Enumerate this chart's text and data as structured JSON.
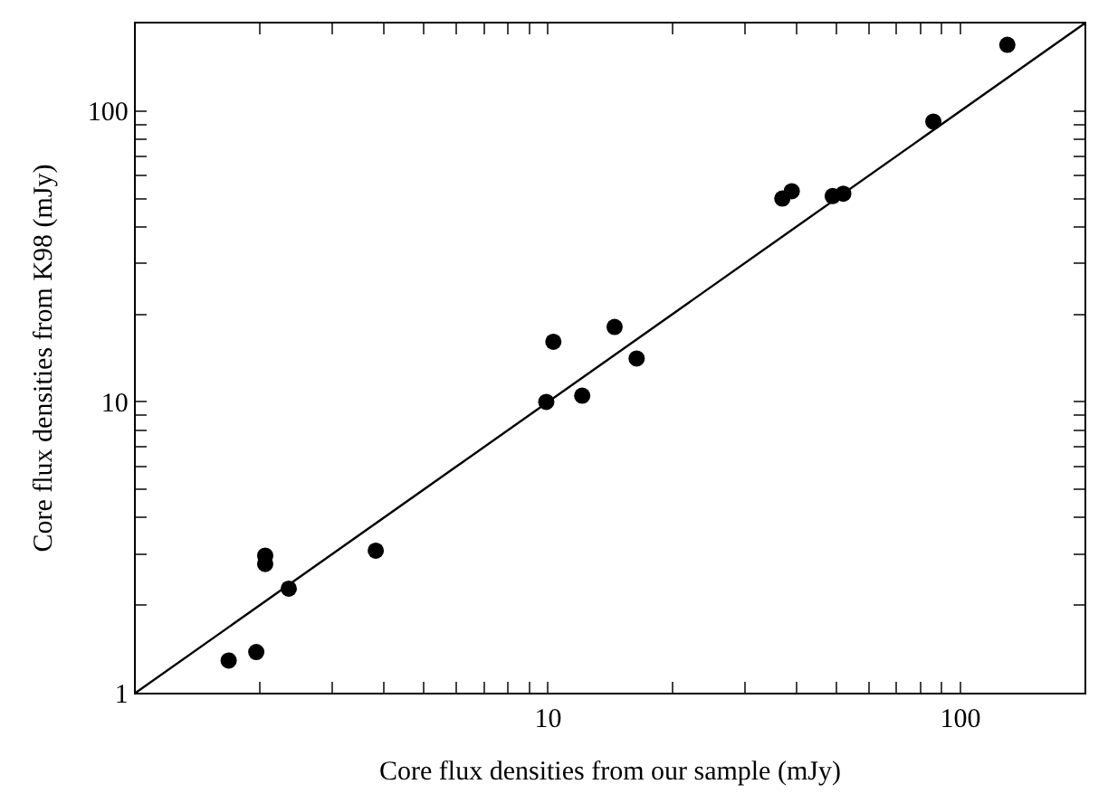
{
  "chart_data": {
    "type": "scatter",
    "xlabel": "Core flux densities from our sample (mJy)",
    "ylabel": "Core flux densities from K98 (mJy)",
    "log": "xy",
    "marker": "circle",
    "xlim": [
      1,
      200
    ],
    "ylim": [
      1,
      200
    ],
    "xticks": [
      {
        "value": 2,
        "label": null
      },
      {
        "value": 3,
        "label": null
      },
      {
        "value": 4,
        "label": null
      },
      {
        "value": 5,
        "label": null
      },
      {
        "value": 6,
        "label": null
      },
      {
        "value": 7,
        "label": null
      },
      {
        "value": 8,
        "label": null
      },
      {
        "value": 9,
        "label": null
      },
      10,
      {
        "value": 20,
        "label": null
      },
      {
        "value": 30,
        "label": null
      },
      {
        "value": 40,
        "label": null
      },
      {
        "value": 50,
        "label": null
      },
      {
        "value": 60,
        "label": null
      },
      {
        "value": 70,
        "label": null
      },
      {
        "value": 80,
        "label": null
      },
      {
        "value": 90,
        "label": null
      },
      100,
      {
        "value": 200,
        "label": null
      }
    ],
    "yticks": [
      1,
      {
        "value": 2,
        "label": null
      },
      {
        "value": 3,
        "label": null
      },
      {
        "value": 4,
        "label": null
      },
      {
        "value": 5,
        "label": null
      },
      {
        "value": 6,
        "label": null
      },
      {
        "value": 7,
        "label": null
      },
      {
        "value": 8,
        "label": null
      },
      {
        "value": 9,
        "label": null
      },
      10,
      {
        "value": 20,
        "label": null
      },
      {
        "value": 30,
        "label": null
      },
      {
        "value": 40,
        "label": null
      },
      {
        "value": 50,
        "label": null
      },
      {
        "value": 60,
        "label": null
      },
      {
        "value": 70,
        "label": null
      },
      {
        "value": 80,
        "label": null
      },
      {
        "value": 90,
        "label": null
      },
      100,
      {
        "value": 200,
        "label": null
      }
    ],
    "series": [
      {
        "color": "#000000",
        "x": [
          1.68,
          1.96,
          2.06,
          2.06,
          2.35,
          3.82,
          9.9,
          10.3,
          12.1,
          14.5,
          16.4,
          37,
          39,
          49,
          52,
          86,
          130
        ],
        "values": [
          1.29,
          1.38,
          2.96,
          2.77,
          2.28,
          3.08,
          10,
          16.1,
          10.5,
          18.1,
          14.1,
          50,
          53,
          51,
          52,
          92,
          169
        ]
      },
      {
        "type": "line",
        "color": "#000000",
        "marker": "none",
        "line_style": "solid",
        "x": [
          1,
          200
        ],
        "values": [
          1,
          200
        ]
      }
    ]
  }
}
